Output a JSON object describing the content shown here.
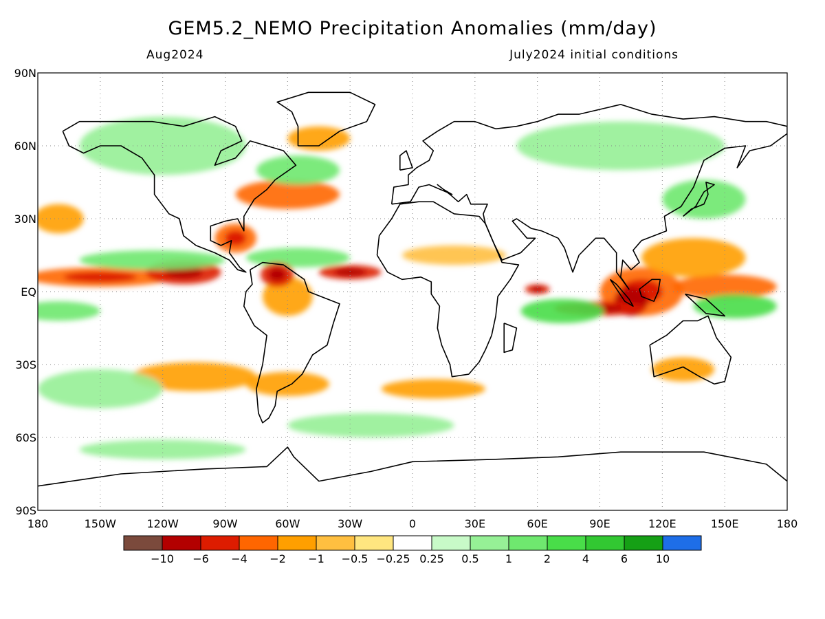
{
  "header": {
    "title": "GEM5.2_NEMO Precipitation Anomalies (mm/day)",
    "valid_month": "Aug2024",
    "init_note": "July2024 initial conditions"
  },
  "map": {
    "projection": "equirectangular",
    "lat_labels": [
      "90N",
      "60N",
      "30N",
      "EQ",
      "30S",
      "60S",
      "90S"
    ],
    "lon_labels": [
      "180",
      "150W",
      "120W",
      "90W",
      "60W",
      "30W",
      "0",
      "30E",
      "60E",
      "90E",
      "120E",
      "150E",
      "180"
    ],
    "grid": "dotted",
    "coastlines": "black"
  },
  "colorbar": {
    "colors": [
      "#7b4a3c",
      "#b30000",
      "#dd1c00",
      "#ff6600",
      "#ff9f00",
      "#ffbf40",
      "#ffe680",
      "#ffffff",
      "#c8fac8",
      "#96f096",
      "#6fe86f",
      "#49dd49",
      "#32c832",
      "#15a015",
      "#1e6ee8"
    ],
    "labels": [
      "−10",
      "−6",
      "−4",
      "−2",
      "−1",
      "−0.5",
      "−0.25",
      "0.25",
      "0.5",
      "1",
      "2",
      "4",
      "6",
      "10"
    ]
  },
  "anomaly_regions": [
    {
      "lon": -150,
      "lat": 6,
      "rx": 35,
      "ry": 4,
      "level": -3
    },
    {
      "lon": -110,
      "lat": 8,
      "rx": 18,
      "ry": 5,
      "level": -5
    },
    {
      "lon": -125,
      "lat": 13,
      "rx": 35,
      "ry": 4,
      "level": 2
    },
    {
      "lon": -30,
      "lat": 8,
      "rx": 15,
      "ry": 3,
      "level": -4
    },
    {
      "lon": -55,
      "lat": 14,
      "rx": 25,
      "ry": 4,
      "level": 2
    },
    {
      "lon": -60,
      "lat": -2,
      "rx": 12,
      "ry": 8,
      "level": -1.5
    },
    {
      "lon": -65,
      "lat": 7,
      "rx": 8,
      "ry": 5,
      "level": -4
    },
    {
      "lon": -85,
      "lat": 22,
      "rx": 10,
      "ry": 6,
      "level": -3
    },
    {
      "lon": -60,
      "lat": 40,
      "rx": 25,
      "ry": 6,
      "level": -2
    },
    {
      "lon": -55,
      "lat": 50,
      "rx": 20,
      "ry": 6,
      "level": 1.5
    },
    {
      "lon": -45,
      "lat": 63,
      "rx": 15,
      "ry": 5,
      "level": -1.5
    },
    {
      "lon": 110,
      "lat": 0,
      "rx": 20,
      "ry": 10,
      "level": -3
    },
    {
      "lon": 105,
      "lat": -4,
      "rx": 8,
      "ry": 6,
      "level": -6
    },
    {
      "lon": 90,
      "lat": -7,
      "rx": 22,
      "ry": 3,
      "level": -4
    },
    {
      "lon": 72,
      "lat": -8,
      "rx": 20,
      "ry": 5,
      "level": 2.5
    },
    {
      "lon": 60,
      "lat": 1,
      "rx": 6,
      "ry": 2,
      "level": -4
    },
    {
      "lon": 150,
      "lat": 2,
      "rx": 25,
      "ry": 5,
      "level": -2
    },
    {
      "lon": 135,
      "lat": 14,
      "rx": 25,
      "ry": 8,
      "level": -1.5
    },
    {
      "lon": 155,
      "lat": -6,
      "rx": 20,
      "ry": 5,
      "level": 2.5
    },
    {
      "lon": -170,
      "lat": -8,
      "rx": 20,
      "ry": 4,
      "level": 2
    },
    {
      "lon": -105,
      "lat": -35,
      "rx": 30,
      "ry": 6,
      "level": -1
    },
    {
      "lon": -60,
      "lat": -38,
      "rx": 20,
      "ry": 5,
      "level": -1.5
    },
    {
      "lon": 10,
      "lat": -40,
      "rx": 25,
      "ry": 4,
      "level": -1
    },
    {
      "lon": 130,
      "lat": -32,
      "rx": 15,
      "ry": 5,
      "level": -1
    },
    {
      "lon": -150,
      "lat": -40,
      "rx": 30,
      "ry": 8,
      "level": 1
    },
    {
      "lon": -20,
      "lat": -55,
      "rx": 40,
      "ry": 5,
      "level": 0.8
    },
    {
      "lon": -170,
      "lat": 30,
      "rx": 12,
      "ry": 6,
      "level": -1.5
    },
    {
      "lon": 100,
      "lat": 60,
      "rx": 50,
      "ry": 10,
      "level": 0.7
    },
    {
      "lon": -120,
      "lat": 60,
      "rx": 40,
      "ry": 12,
      "level": 0.7
    },
    {
      "lon": 140,
      "lat": 38,
      "rx": 20,
      "ry": 8,
      "level": 1.2
    },
    {
      "lon": 20,
      "lat": 15,
      "rx": 25,
      "ry": 4,
      "level": -0.5
    },
    {
      "lon": -120,
      "lat": -65,
      "rx": 40,
      "ry": 4,
      "level": 0.6
    }
  ]
}
